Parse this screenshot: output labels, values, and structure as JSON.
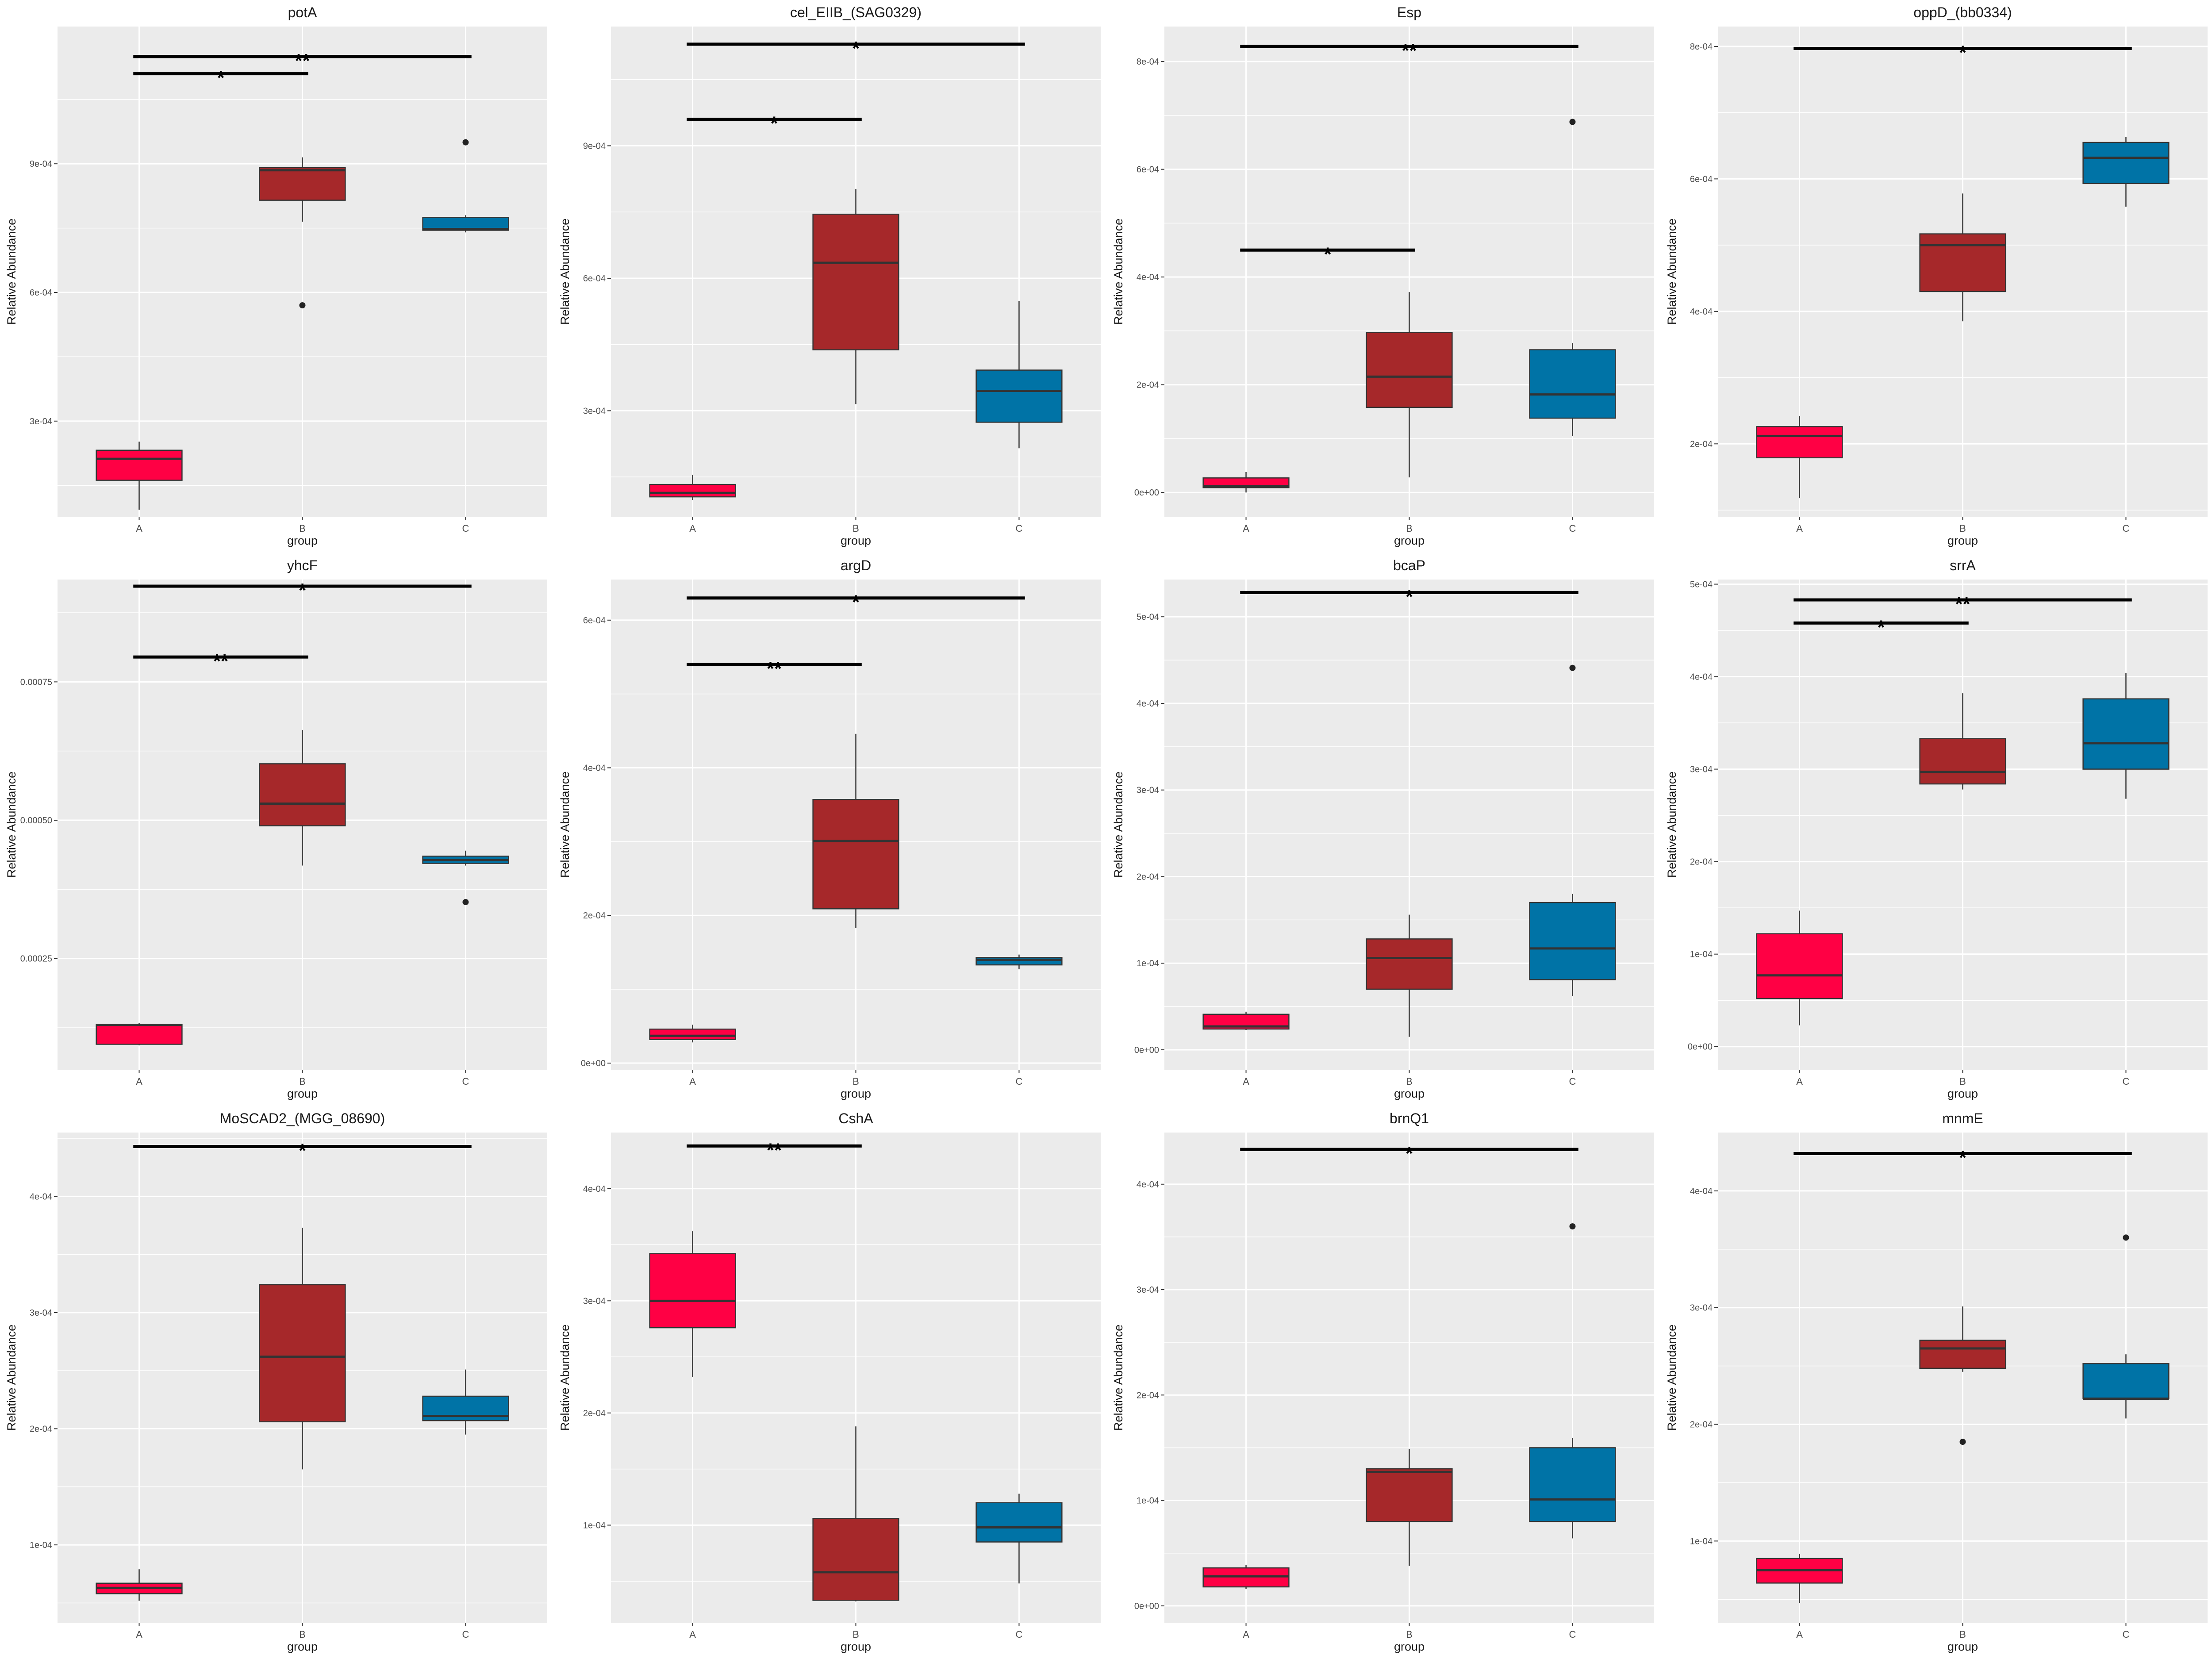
{
  "chart_data": [
    {
      "type": "box",
      "title": "potA",
      "xlabel": "group",
      "ylabel": "Relative Abundance",
      "categories": [
        "A",
        "B",
        "C"
      ],
      "yticks": [
        "3e-04",
        "6e-04",
        "9e-04"
      ],
      "tick_values": [
        0.0003,
        0.0006,
        0.0009
      ],
      "ylim": [
        7.7e-05,
        0.00122
      ],
      "boxes": [
        {
          "group": "A",
          "low": 9.35e-05,
          "q1": 0.000162,
          "median": 0.000212,
          "q3": 0.000232,
          "high": 0.000252
        },
        {
          "group": "B",
          "low": 0.000765,
          "q1": 0.000815,
          "median": 0.000885,
          "q3": 0.000891,
          "high": 0.000915
        },
        {
          "group": "C",
          "low": 0.00074,
          "q1": 0.000745,
          "median": 0.000748,
          "q3": 0.000775,
          "high": 0.00078
        }
      ],
      "outliers": [
        {
          "group": "B",
          "value": 0.00057
        },
        {
          "group": "C",
          "value": 0.00095
        }
      ],
      "significance": [
        {
          "from": "A",
          "to": "B",
          "label": "*",
          "y": 0.00111
        },
        {
          "from": "A",
          "to": "C",
          "label": "**",
          "y": 0.00115
        }
      ]
    },
    {
      "type": "box",
      "title": "cel_EIIB_(SAG0329)",
      "xlabel": "group",
      "ylabel": "Relative Abundance",
      "categories": [
        "A",
        "B",
        "C"
      ],
      "yticks": [
        "3e-04",
        "6e-04",
        "9e-04"
      ],
      "tick_values": [
        0.0003,
        0.0006,
        0.0009
      ],
      "ylim": [
        6e-05,
        0.00117
      ],
      "boxes": [
        {
          "group": "A",
          "low": 9.8e-05,
          "q1": 0.000105,
          "median": 0.000114,
          "q3": 0.000133,
          "high": 0.000155
        },
        {
          "group": "B",
          "low": 0.000315,
          "q1": 0.000438,
          "median": 0.000635,
          "q3": 0.000745,
          "high": 0.000802
        },
        {
          "group": "C",
          "low": 0.000215,
          "q1": 0.000274,
          "median": 0.000345,
          "q3": 0.000392,
          "high": 0.000548
        }
      ],
      "outliers": [],
      "significance": [
        {
          "from": "A",
          "to": "B",
          "label": "*",
          "y": 0.00096
        },
        {
          "from": "A",
          "to": "C",
          "label": "*",
          "y": 0.00113
        }
      ]
    },
    {
      "type": "box",
      "title": "Esp",
      "xlabel": "group",
      "ylabel": "Relative Abundance",
      "categories": [
        "A",
        "B",
        "C"
      ],
      "yticks": [
        "0e+00",
        "2e-04",
        "4e-04",
        "6e-04",
        "8e-04"
      ],
      "tick_values": [
        0,
        0.0002,
        0.0004,
        0.0006,
        0.0008
      ],
      "ylim": [
        -4.5e-05,
        0.000865
      ],
      "boxes": [
        {
          "group": "A",
          "low": 0.0,
          "q1": 9e-06,
          "median": 1.2e-05,
          "q3": 2.7e-05,
          "high": 3.8e-05
        },
        {
          "group": "B",
          "low": 2.8e-05,
          "q1": 0.000158,
          "median": 0.000215,
          "q3": 0.000297,
          "high": 0.000372
        },
        {
          "group": "C",
          "low": 0.000105,
          "q1": 0.000138,
          "median": 0.000182,
          "q3": 0.000265,
          "high": 0.000277
        }
      ],
      "outliers": [
        {
          "group": "C",
          "value": 0.000688
        }
      ],
      "significance": [
        {
          "from": "A",
          "to": "B",
          "label": "*",
          "y": 0.00045
        },
        {
          "from": "A",
          "to": "C",
          "label": "**",
          "y": 0.000828
        }
      ]
    },
    {
      "type": "box",
      "title": "oppD_(bb0334)",
      "xlabel": "group",
      "ylabel": "Relative Abundance",
      "categories": [
        "A",
        "B",
        "C"
      ],
      "yticks": [
        "2e-04",
        "4e-04",
        "6e-04",
        "8e-04"
      ],
      "tick_values": [
        0.0002,
        0.0004,
        0.0006,
        0.0008
      ],
      "ylim": [
        9e-05,
        0.00083
      ],
      "boxes": [
        {
          "group": "A",
          "low": 0.000118,
          "q1": 0.000179,
          "median": 0.000212,
          "q3": 0.000226,
          "high": 0.000242
        },
        {
          "group": "B",
          "low": 0.000385,
          "q1": 0.00043,
          "median": 0.0005,
          "q3": 0.000517,
          "high": 0.000578
        },
        {
          "group": "C",
          "low": 0.000558,
          "q1": 0.000593,
          "median": 0.000632,
          "q3": 0.000655,
          "high": 0.000663
        }
      ],
      "outliers": [],
      "significance": [
        {
          "from": "A",
          "to": "C",
          "label": "*",
          "y": 0.000797
        }
      ]
    },
    {
      "type": "box",
      "title": "yhcF",
      "xlabel": "group",
      "ylabel": "Relative Abundance",
      "categories": [
        "A",
        "B",
        "C"
      ],
      "yticks": [
        "0.00025",
        "0.00050",
        "0.00075"
      ],
      "tick_values": [
        0.00025,
        0.0005,
        0.00075
      ],
      "ylim": [
        4.9e-05,
        0.000935
      ],
      "boxes": [
        {
          "group": "A",
          "low": 9.3e-05,
          "q1": 9.5e-05,
          "median": 0.00013,
          "q3": 0.000131,
          "high": 0.000133
        },
        {
          "group": "B",
          "low": 0.000418,
          "q1": 0.00049,
          "median": 0.00053,
          "q3": 0.000602,
          "high": 0.000663
        },
        {
          "group": "C",
          "low": 0.000418,
          "q1": 0.000422,
          "median": 0.000428,
          "q3": 0.000435,
          "high": 0.000445
        }
      ],
      "outliers": [
        {
          "group": "C",
          "value": 0.000352
        }
      ],
      "significance": [
        {
          "from": "A",
          "to": "B",
          "label": "**",
          "y": 0.000795
        },
        {
          "from": "A",
          "to": "C",
          "label": "*",
          "y": 0.000923
        }
      ]
    },
    {
      "type": "box",
      "title": "argD",
      "xlabel": "group",
      "ylabel": "Relative Abundance",
      "categories": [
        "A",
        "B",
        "C"
      ],
      "yticks": [
        "0e+00",
        "2e-04",
        "4e-04",
        "6e-04"
      ],
      "tick_values": [
        0,
        0.0002,
        0.0004,
        0.0006
      ],
      "ylim": [
        -9e-06,
        0.000655
      ],
      "boxes": [
        {
          "group": "A",
          "low": 2.8e-05,
          "q1": 3.2e-05,
          "median": 3.7e-05,
          "q3": 4.6e-05,
          "high": 5.2e-05
        },
        {
          "group": "B",
          "low": 0.000183,
          "q1": 0.000209,
          "median": 0.000301,
          "q3": 0.000357,
          "high": 0.000446
        },
        {
          "group": "C",
          "low": 0.000127,
          "q1": 0.000133,
          "median": 0.00014,
          "q3": 0.000143,
          "high": 0.000147
        }
      ],
      "outliers": [],
      "significance": [
        {
          "from": "A",
          "to": "B",
          "label": "**",
          "y": 0.00054
        },
        {
          "from": "A",
          "to": "C",
          "label": "*",
          "y": 0.00063
        }
      ]
    },
    {
      "type": "box",
      "title": "bcaP",
      "xlabel": "group",
      "ylabel": "Relative Abundance",
      "categories": [
        "A",
        "B",
        "C"
      ],
      "yticks": [
        "0e+00",
        "1e-04",
        "2e-04",
        "3e-04",
        "4e-04",
        "5e-04"
      ],
      "tick_values": [
        0,
        0.0001,
        0.0002,
        0.0003,
        0.0004,
        0.0005
      ],
      "ylim": [
        -2.3e-05,
        0.000543
      ],
      "boxes": [
        {
          "group": "A",
          "low": 2.3e-05,
          "q1": 2.4e-05,
          "median": 2.7e-05,
          "q3": 4.1e-05,
          "high": 4.4e-05
        },
        {
          "group": "B",
          "low": 1.5e-05,
          "q1": 7e-05,
          "median": 0.000106,
          "q3": 0.000128,
          "high": 0.000156
        },
        {
          "group": "C",
          "low": 6.2e-05,
          "q1": 8.1e-05,
          "median": 0.000117,
          "q3": 0.00017,
          "high": 0.00018
        }
      ],
      "outliers": [
        {
          "group": "C",
          "value": 0.000441
        }
      ],
      "significance": [
        {
          "from": "A",
          "to": "C",
          "label": "*",
          "y": 0.000528
        }
      ]
    },
    {
      "type": "box",
      "title": "srrA",
      "xlabel": "group",
      "ylabel": "Relative Abundance",
      "categories": [
        "A",
        "B",
        "C"
      ],
      "yticks": [
        "0e+00",
        "1e-04",
        "2e-04",
        "3e-04",
        "4e-04",
        "5e-04"
      ],
      "tick_values": [
        0,
        0.0001,
        0.0002,
        0.0003,
        0.0004,
        0.0005
      ],
      "ylim": [
        -2.5e-05,
        0.000505
      ],
      "boxes": [
        {
          "group": "A",
          "low": 2.3e-05,
          "q1": 5.2e-05,
          "median": 7.7e-05,
          "q3": 0.000122,
          "high": 0.000147
        },
        {
          "group": "B",
          "low": 0.000278,
          "q1": 0.000284,
          "median": 0.000297,
          "q3": 0.000333,
          "high": 0.000382
        },
        {
          "group": "C",
          "low": 0.000268,
          "q1": 0.0003,
          "median": 0.000328,
          "q3": 0.000376,
          "high": 0.000404
        }
      ],
      "outliers": [],
      "significance": [
        {
          "from": "A",
          "to": "B",
          "label": "*",
          "y": 0.000458
        },
        {
          "from": "A",
          "to": "C",
          "label": "**",
          "y": 0.000483
        }
      ]
    },
    {
      "type": "box",
      "title": "MoSCAD2_(MGG_08690)",
      "xlabel": "group",
      "ylabel": "Relative Abundance",
      "categories": [
        "A",
        "B",
        "C"
      ],
      "yticks": [
        "1e-04",
        "2e-04",
        "3e-04",
        "4e-04"
      ],
      "tick_values": [
        0.0001,
        0.0002,
        0.0003,
        0.0004
      ],
      "ylim": [
        3.3e-05,
        0.000455
      ],
      "boxes": [
        {
          "group": "A",
          "low": 5.2e-05,
          "q1": 5.8e-05,
          "median": 6.3e-05,
          "q3": 6.7e-05,
          "high": 7.9e-05
        },
        {
          "group": "B",
          "low": 0.000165,
          "q1": 0.000206,
          "median": 0.000262,
          "q3": 0.000324,
          "high": 0.000373
        },
        {
          "group": "C",
          "low": 0.000195,
          "q1": 0.000207,
          "median": 0.000211,
          "q3": 0.000228,
          "high": 0.000251
        }
      ],
      "outliers": [],
      "significance": [
        {
          "from": "A",
          "to": "C",
          "label": "*",
          "y": 0.000443
        }
      ]
    },
    {
      "type": "box",
      "title": "CshA",
      "xlabel": "group",
      "ylabel": "Relative Abundance",
      "categories": [
        "A",
        "B",
        "C"
      ],
      "yticks": [
        "1e-04",
        "2e-04",
        "3e-04",
        "4e-04"
      ],
      "tick_values": [
        0.0001,
        0.0002,
        0.0003,
        0.0004
      ],
      "ylim": [
        1.3e-05,
        0.00045
      ],
      "boxes": [
        {
          "group": "A",
          "low": 0.000232,
          "q1": 0.000276,
          "median": 0.0003,
          "q3": 0.000342,
          "high": 0.000362
        },
        {
          "group": "B",
          "low": 3.2e-05,
          "q1": 3.3e-05,
          "median": 5.8e-05,
          "q3": 0.000106,
          "high": 0.000188
        },
        {
          "group": "C",
          "low": 4.8e-05,
          "q1": 8.5e-05,
          "median": 9.8e-05,
          "q3": 0.00012,
          "high": 0.000128
        }
      ],
      "outliers": [],
      "significance": [
        {
          "from": "A",
          "to": "B",
          "label": "**",
          "y": 0.000438
        }
      ]
    },
    {
      "type": "box",
      "title": "brnQ1",
      "xlabel": "group",
      "ylabel": "Relative Abundance",
      "categories": [
        "A",
        "B",
        "C"
      ],
      "yticks": [
        "0e+00",
        "1e-04",
        "2e-04",
        "3e-04",
        "4e-04"
      ],
      "tick_values": [
        0,
        0.0001,
        0.0002,
        0.0003,
        0.0004
      ],
      "ylim": [
        -1.6e-05,
        0.000449
      ],
      "boxes": [
        {
          "group": "A",
          "low": 1.6e-05,
          "q1": 1.8e-05,
          "median": 2.8e-05,
          "q3": 3.6e-05,
          "high": 3.9e-05
        },
        {
          "group": "B",
          "low": 3.8e-05,
          "q1": 8e-05,
          "median": 0.000127,
          "q3": 0.00013,
          "high": 0.000149
        },
        {
          "group": "C",
          "low": 6.4e-05,
          "q1": 8e-05,
          "median": 0.000101,
          "q3": 0.00015,
          "high": 0.000159
        }
      ],
      "outliers": [
        {
          "group": "C",
          "value": 0.00036
        }
      ],
      "significance": [
        {
          "from": "A",
          "to": "C",
          "label": "*",
          "y": 0.000433
        }
      ]
    },
    {
      "type": "box",
      "title": "mnmE",
      "xlabel": "group",
      "ylabel": "Relative Abundance",
      "categories": [
        "A",
        "B",
        "C"
      ],
      "yticks": [
        "1e-04",
        "2e-04",
        "3e-04",
        "4e-04"
      ],
      "tick_values": [
        0.0001,
        0.0002,
        0.0003,
        0.0004
      ],
      "ylim": [
        3e-05,
        0.00045
      ],
      "boxes": [
        {
          "group": "A",
          "low": 4.7e-05,
          "q1": 6.4e-05,
          "median": 7.5e-05,
          "q3": 8.5e-05,
          "high": 8.9e-05
        },
        {
          "group": "B",
          "low": 0.000245,
          "q1": 0.000248,
          "median": 0.000265,
          "q3": 0.000272,
          "high": 0.000301
        },
        {
          "group": "C",
          "low": 0.000205,
          "q1": 0.000222,
          "median": 0.000222,
          "q3": 0.000252,
          "high": 0.00026
        }
      ],
      "outliers": [
        {
          "group": "B",
          "value": 0.000185
        },
        {
          "group": "C",
          "value": 0.00036
        }
      ],
      "significance": [
        {
          "from": "A",
          "to": "C",
          "label": "*",
          "y": 0.000432
        }
      ]
    }
  ],
  "colors": {
    "A": "#FF0044",
    "B": "#A6282A",
    "C": "#0073A6",
    "panel_bg": "#EBEBEB",
    "grid": "#FFFFFF"
  }
}
